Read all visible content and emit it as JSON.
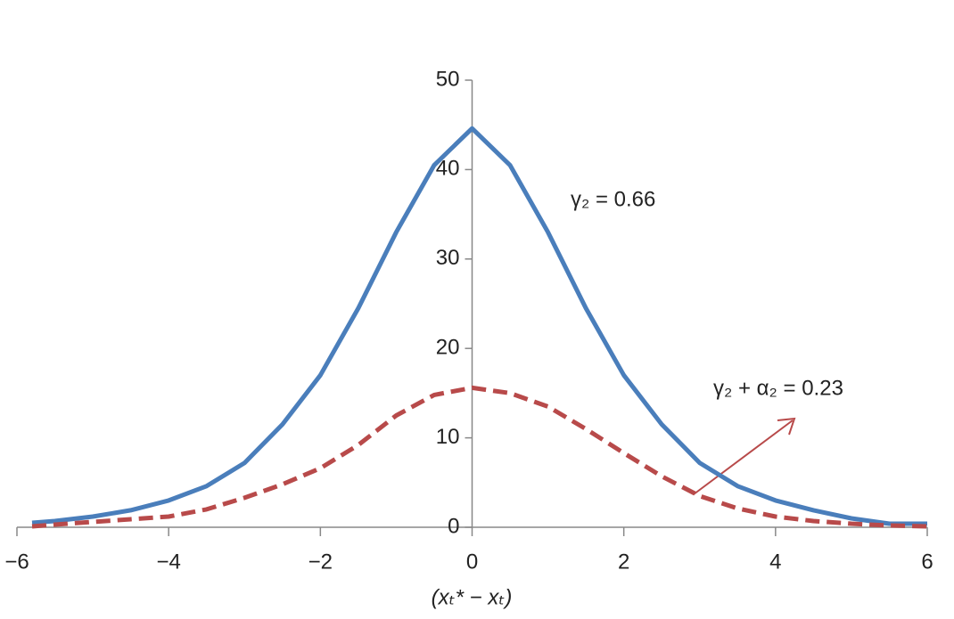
{
  "chart_data": {
    "type": "line",
    "x": [
      -5.8,
      -5.5,
      -5,
      -4.5,
      -4,
      -3.5,
      -3,
      -2.5,
      -2,
      -1.5,
      -1,
      -0.5,
      0,
      0.5,
      1,
      1.5,
      2,
      2.5,
      3,
      3.5,
      4,
      4.5,
      5,
      5.5,
      6
    ],
    "series": [
      {
        "color": "#4a7ebb",
        "style": "solid",
        "values": [
          0.5,
          0.7,
          1.2,
          1.9,
          3.0,
          4.6,
          7.2,
          11.5,
          17,
          24.5,
          33,
          40.5,
          44.6,
          40.5,
          33,
          24.5,
          17,
          11.5,
          7.2,
          4.6,
          3.0,
          1.9,
          1.0,
          0.4,
          0.4
        ]
      },
      {
        "color": "#b84a4a",
        "style": "dashed",
        "values": [
          0.1,
          0.3,
          0.6,
          0.9,
          1.2,
          2.0,
          3.3,
          4.8,
          6.6,
          9.2,
          12.5,
          14.8,
          15.6,
          15.0,
          13.5,
          11,
          8.3,
          5.7,
          3.5,
          2.1,
          1.2,
          0.7,
          0.4,
          0.2,
          0.1
        ]
      }
    ],
    "xlim": [
      -6,
      6
    ],
    "xticks": [
      {
        "value": -6,
        "label": "−6"
      },
      {
        "value": -4,
        "label": "−4"
      },
      {
        "value": -2,
        "label": "−2"
      },
      0,
      2,
      4,
      6
    ],
    "ylim": [
      0,
      50
    ],
    "yticks": [
      0,
      10,
      20,
      30,
      40,
      50
    ],
    "xlabel": "(xₜ* − xₜ)",
    "annotations": [
      {
        "text": "γ₂ = 0.66"
      },
      {
        "text": "γ₂ + α₂ = 0.23"
      }
    ]
  }
}
